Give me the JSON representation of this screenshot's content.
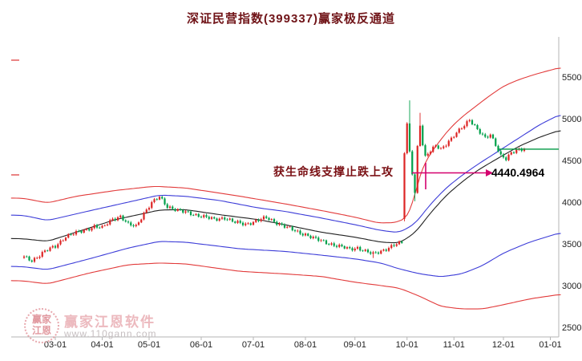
{
  "header": {
    "title": "深证民营指数(399337)赢家极反通道"
  },
  "annotation": {
    "support_text": "获生命线支撑止跌上攻",
    "price_label": "4440.4964",
    "arrow_color": "#d4006e"
  },
  "watermark": {
    "brand": "赢家江恩软件",
    "url": "www.110gann.com",
    "logo_line1": "赢家",
    "logo_line2": "江恩"
  },
  "axes": {
    "y_ticks": [
      {
        "label": "5500",
        "value": 5500
      },
      {
        "label": "5000",
        "value": 5000
      },
      {
        "label": "4500",
        "value": 4500
      },
      {
        "label": "4000",
        "value": 4000
      },
      {
        "label": "3500",
        "value": 3500
      },
      {
        "label": "3000",
        "value": 3000
      },
      {
        "label": "2500",
        "value": 2500
      }
    ],
    "x_ticks": [
      {
        "label": "03-01",
        "i": 12
      },
      {
        "label": "04-01",
        "i": 30
      },
      {
        "label": "05-01",
        "i": 48
      },
      {
        "label": "06-01",
        "i": 68
      },
      {
        "label": "07-01",
        "i": 88
      },
      {
        "label": "08-01",
        "i": 108
      },
      {
        "label": "09-01",
        "i": 127
      },
      {
        "label": "10-01",
        "i": 147
      },
      {
        "label": "11-01",
        "i": 165
      },
      {
        "label": "12-01",
        "i": 184
      },
      {
        "label": "01-01",
        "i": 202
      }
    ]
  },
  "chart_data": {
    "type": "candlestick",
    "title": "深证民营指数(399337)赢家极反通道",
    "ylim": [
      2500,
      5500
    ],
    "candle_count": 193,
    "colors": {
      "up": "#dd2424",
      "down": "#00a04a",
      "axis": "#b5b5b5",
      "current_line": "#009944",
      "left_tick": "#dd3333"
    },
    "close_anchors": [
      [
        0,
        3350
      ],
      [
        3,
        3310
      ],
      [
        8,
        3420
      ],
      [
        12,
        3480
      ],
      [
        16,
        3600
      ],
      [
        22,
        3660
      ],
      [
        27,
        3720
      ],
      [
        30,
        3700
      ],
      [
        34,
        3810
      ],
      [
        37,
        3840
      ],
      [
        40,
        3740
      ],
      [
        43,
        3720
      ],
      [
        46,
        3880
      ],
      [
        49,
        4000
      ],
      [
        52,
        4070
      ],
      [
        55,
        3960
      ],
      [
        60,
        3900
      ],
      [
        68,
        3845
      ],
      [
        73,
        3800
      ],
      [
        77,
        3825
      ],
      [
        81,
        3765
      ],
      [
        85,
        3745
      ],
      [
        89,
        3785
      ],
      [
        93,
        3820
      ],
      [
        97,
        3765
      ],
      [
        101,
        3705
      ],
      [
        105,
        3650
      ],
      [
        108,
        3625
      ],
      [
        112,
        3565
      ],
      [
        116,
        3525
      ],
      [
        121,
        3480
      ],
      [
        125,
        3445
      ],
      [
        128,
        3465
      ],
      [
        131,
        3420
      ],
      [
        134,
        3385
      ],
      [
        137,
        3425
      ],
      [
        140,
        3465
      ],
      [
        143,
        3505
      ],
      [
        145,
        3520
      ],
      [
        146,
        4600
      ],
      [
        147,
        4950
      ],
      [
        148,
        4620
      ],
      [
        149,
        4350
      ],
      [
        150,
        4120
      ],
      [
        151,
        4680
      ],
      [
        152,
        4930
      ],
      [
        153,
        4690
      ],
      [
        154,
        4560
      ],
      [
        156,
        4620
      ],
      [
        158,
        4700
      ],
      [
        160,
        4650
      ],
      [
        162,
        4700
      ],
      [
        164,
        4760
      ],
      [
        166,
        4840
      ],
      [
        168,
        4910
      ],
      [
        170,
        4970
      ],
      [
        171,
        5000
      ],
      [
        174,
        4870
      ],
      [
        177,
        4780
      ],
      [
        179,
        4830
      ],
      [
        181,
        4700
      ],
      [
        183,
        4560
      ],
      [
        185,
        4520
      ],
      [
        187,
        4600
      ],
      [
        189,
        4640
      ],
      [
        192,
        4650
      ]
    ],
    "overrides": {
      "134": {
        "low": 3340
      },
      "146": {
        "open": 3810,
        "low": 3780
      },
      "148": {
        "high": 5230
      },
      "150": {
        "low": 4020
      },
      "152": {
        "high": 5080
      }
    },
    "synth": {
      "w1": 18,
      "f1": 1.93,
      "w2": 9,
      "f2": 0.61,
      "p2": 2,
      "e1": 10,
      "e2": 9,
      "f3": 2.7,
      "p3": 1,
      "damp_from": 145,
      "damp_to": 155,
      "damp": 0.3,
      "first_open_offset": -15
    },
    "channel_lines": [
      {
        "name": "upper-outer-red",
        "color": "#e23b3b",
        "width": 1.1,
        "anchors": [
          [
            -5,
            4060
          ],
          [
            0,
            4055
          ],
          [
            9,
            4000
          ],
          [
            20,
            4080
          ],
          [
            35,
            4150
          ],
          [
            50,
            4200
          ],
          [
            62,
            4180
          ],
          [
            83,
            4080
          ],
          [
            100,
            3990
          ],
          [
            114,
            3910
          ],
          [
            127,
            3830
          ],
          [
            136,
            3760
          ],
          [
            143,
            3765
          ],
          [
            147,
            3830
          ],
          [
            149,
            3950
          ],
          [
            151,
            4250
          ],
          [
            154,
            4500
          ],
          [
            158,
            4680
          ],
          [
            163,
            4880
          ],
          [
            168,
            5030
          ],
          [
            173,
            5150
          ],
          [
            178,
            5270
          ],
          [
            184,
            5400
          ],
          [
            190,
            5480
          ],
          [
            197,
            5550
          ],
          [
            206,
            5625
          ]
        ]
      },
      {
        "name": "upper-inner-blue",
        "color": "#3c3cd8",
        "width": 1.1,
        "anchors": [
          [
            -5,
            3855
          ],
          [
            0,
            3850
          ],
          [
            9,
            3790
          ],
          [
            25,
            3905
          ],
          [
            40,
            4010
          ],
          [
            52,
            4095
          ],
          [
            62,
            4080
          ],
          [
            75,
            4030
          ],
          [
            90,
            3940
          ],
          [
            100,
            3900
          ],
          [
            114,
            3820
          ],
          [
            127,
            3740
          ],
          [
            137,
            3670
          ],
          [
            144,
            3645
          ],
          [
            150,
            3750
          ],
          [
            156,
            3985
          ],
          [
            162,
            4180
          ],
          [
            168,
            4330
          ],
          [
            174,
            4460
          ],
          [
            181,
            4600
          ],
          [
            190,
            4780
          ],
          [
            198,
            4940
          ],
          [
            206,
            5065
          ]
        ]
      },
      {
        "name": "life-line-black",
        "color": "#222222",
        "width": 1.1,
        "anchors": [
          [
            -5,
            3575
          ],
          [
            0,
            3570
          ],
          [
            9,
            3540
          ],
          [
            20,
            3650
          ],
          [
            35,
            3800
          ],
          [
            52,
            3915
          ],
          [
            62,
            3920
          ],
          [
            75,
            3860
          ],
          [
            90,
            3800
          ],
          [
            100,
            3740
          ],
          [
            114,
            3650
          ],
          [
            127,
            3590
          ],
          [
            137,
            3530
          ],
          [
            144,
            3520
          ],
          [
            150,
            3640
          ],
          [
            156,
            3880
          ],
          [
            162,
            4090
          ],
          [
            168,
            4250
          ],
          [
            174,
            4390
          ],
          [
            181,
            4520
          ],
          [
            190,
            4680
          ],
          [
            198,
            4790
          ],
          [
            206,
            4875
          ]
        ]
      },
      {
        "name": "lower-inner-blue",
        "color": "#3c3cd8",
        "width": 1.1,
        "anchors": [
          [
            -5,
            3240
          ],
          [
            0,
            3235
          ],
          [
            9,
            3200
          ],
          [
            25,
            3330
          ],
          [
            40,
            3460
          ],
          [
            52,
            3540
          ],
          [
            62,
            3530
          ],
          [
            83,
            3450
          ],
          [
            100,
            3420
          ],
          [
            114,
            3375
          ],
          [
            127,
            3330
          ],
          [
            137,
            3280
          ],
          [
            144,
            3210
          ],
          [
            152,
            3150
          ],
          [
            160,
            3115
          ],
          [
            168,
            3150
          ],
          [
            176,
            3250
          ],
          [
            184,
            3400
          ],
          [
            194,
            3530
          ],
          [
            206,
            3645
          ]
        ]
      },
      {
        "name": "lower-outer-red",
        "color": "#e23b3b",
        "width": 1.1,
        "anchors": [
          [
            -5,
            3070
          ],
          [
            0,
            3065
          ],
          [
            9,
            3030
          ],
          [
            25,
            3160
          ],
          [
            40,
            3260
          ],
          [
            52,
            3280
          ],
          [
            62,
            3270
          ],
          [
            83,
            3180
          ],
          [
            100,
            3150
          ],
          [
            114,
            3120
          ],
          [
            127,
            3050
          ],
          [
            137,
            3010
          ],
          [
            144,
            2980
          ],
          [
            152,
            2880
          ],
          [
            160,
            2760
          ],
          [
            168,
            2730
          ],
          [
            176,
            2730
          ],
          [
            184,
            2780
          ],
          [
            194,
            2850
          ],
          [
            206,
            2905
          ]
        ]
      }
    ],
    "current_price_line": {
      "value": 4645,
      "from_x_index": 182
    },
    "left_edge_ticks": [
      75,
      218
    ],
    "annotation_value": 4440.4964
  }
}
